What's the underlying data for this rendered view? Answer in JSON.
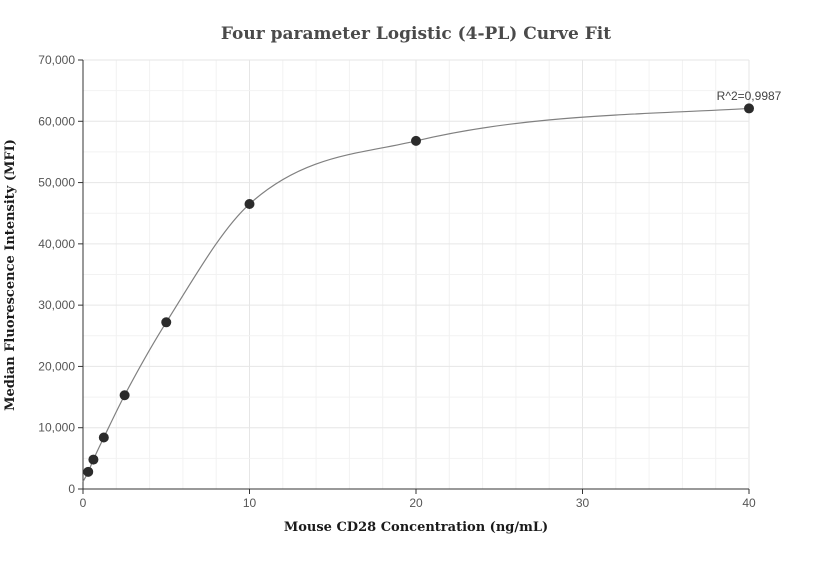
{
  "chart_data": {
    "type": "scatter",
    "title": "Four parameter Logistic (4-PL) Curve Fit",
    "xlabel": "Mouse CD28 Concentration (ng/mL)",
    "ylabel": "Median Fluorescence Intensity (MFI)",
    "xlim": [
      0,
      40
    ],
    "ylim": [
      0,
      70000
    ],
    "x_ticks": [
      0,
      10,
      20,
      30,
      40
    ],
    "x_tick_labels": [
      "0",
      "10",
      "20",
      "30",
      "40"
    ],
    "y_ticks": [
      0,
      10000,
      20000,
      30000,
      40000,
      50000,
      60000,
      70000
    ],
    "y_tick_labels": [
      "0",
      "10,000",
      "20,000",
      "30,000",
      "40,000",
      "50,000",
      "60,000",
      "70,000"
    ],
    "grid": true,
    "series": [
      {
        "values": [
          {
            "x": 0.3125,
            "y": 2800
          },
          {
            "x": 0.625,
            "y": 4800
          },
          {
            "x": 1.25,
            "y": 8400
          },
          {
            "x": 2.5,
            "y": 15300
          },
          {
            "x": 5,
            "y": 27200
          },
          {
            "x": 10,
            "y": 46500
          },
          {
            "x": 20,
            "y": 56800
          },
          {
            "x": 40,
            "y": 62100
          }
        ]
      }
    ],
    "fit": {
      "model": "4PL",
      "annotation": "R^2=0,9987",
      "color": "#808080"
    },
    "point_color": "#2b2b2b"
  }
}
